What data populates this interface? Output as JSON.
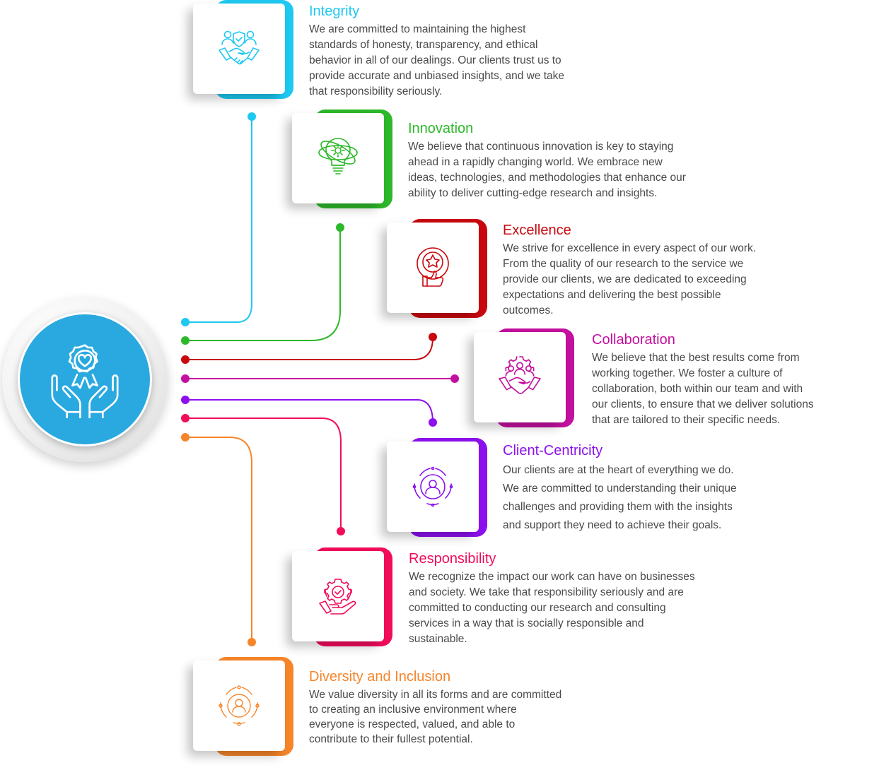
{
  "colors": {
    "integrity": "#1ec8f0",
    "innovation": "#2db82a",
    "excellence": "#c8080e",
    "collaboration": "#c4109e",
    "client_centricity": "#8c10ee",
    "responsibility": "#f20c5c",
    "diversity": "#f6852a",
    "hub": "#2aa9e0"
  },
  "hub": {
    "icon": "hands-award-heart-icon"
  },
  "values": [
    {
      "key": "integrity",
      "title": "Integrity",
      "icon": "handshake-shield-icon",
      "lines": [
        "We are committed to maintaining the highest",
        "standards of honesty, transparency, and ethical",
        "behavior in all of our dealings. Our clients trust us to",
        "provide accurate and unbiased insights, and we take",
        "that responsibility seriously."
      ]
    },
    {
      "key": "innovation",
      "title": "Innovation",
      "icon": "gear-bulb-atom-icon",
      "lines": [
        "We believe that continuous innovation is key to staying",
        "ahead in a rapidly changing world. We embrace new",
        "ideas, technologies, and methodologies that enhance our",
        "ability to deliver cutting-edge research and insights."
      ]
    },
    {
      "key": "excellence",
      "title": "Excellence",
      "icon": "star-medal-thumb-icon",
      "lines": [
        "We strive for excellence in every aspect of our work.",
        "From the quality of our research to the service we",
        "provide our clients, we are dedicated to exceeding",
        "expectations and delivering the best possible",
        "outcomes."
      ]
    },
    {
      "key": "collaboration",
      "title": "Collaboration",
      "icon": "team-gear-handshake-icon",
      "lines": [
        "We believe that the best results come from",
        "working together. We foster a culture of",
        "collaboration, both within our team and with",
        "our clients, to ensure that we deliver solutions",
        "that are tailored to their specific needs."
      ]
    },
    {
      "key": "client_centricity",
      "title": "Client-Centricity",
      "icon": "client-target-icon",
      "lines": [
        "Our clients are at the heart of everything we do.",
        "We are committed to understanding their unique",
        "challenges and providing them with the insights",
        "and support they need to achieve their goals."
      ]
    },
    {
      "key": "responsibility",
      "title": "Responsibility",
      "icon": "hand-gear-check-icon",
      "lines": [
        "We recognize the impact our work can have on businesses",
        "and society. We take that responsibility seriously and are",
        "committed to conducting our research and consulting",
        "services in a way that is socially responsible and",
        "sustainable."
      ]
    },
    {
      "key": "diversity",
      "title": "Diversity and Inclusion",
      "icon": "person-circle-dots-icon",
      "lines": [
        "We value diversity in all its forms and are committed",
        "to creating an inclusive environment where",
        "everyone is respected, valued, and able to",
        "contribute to their fullest potential."
      ]
    }
  ]
}
